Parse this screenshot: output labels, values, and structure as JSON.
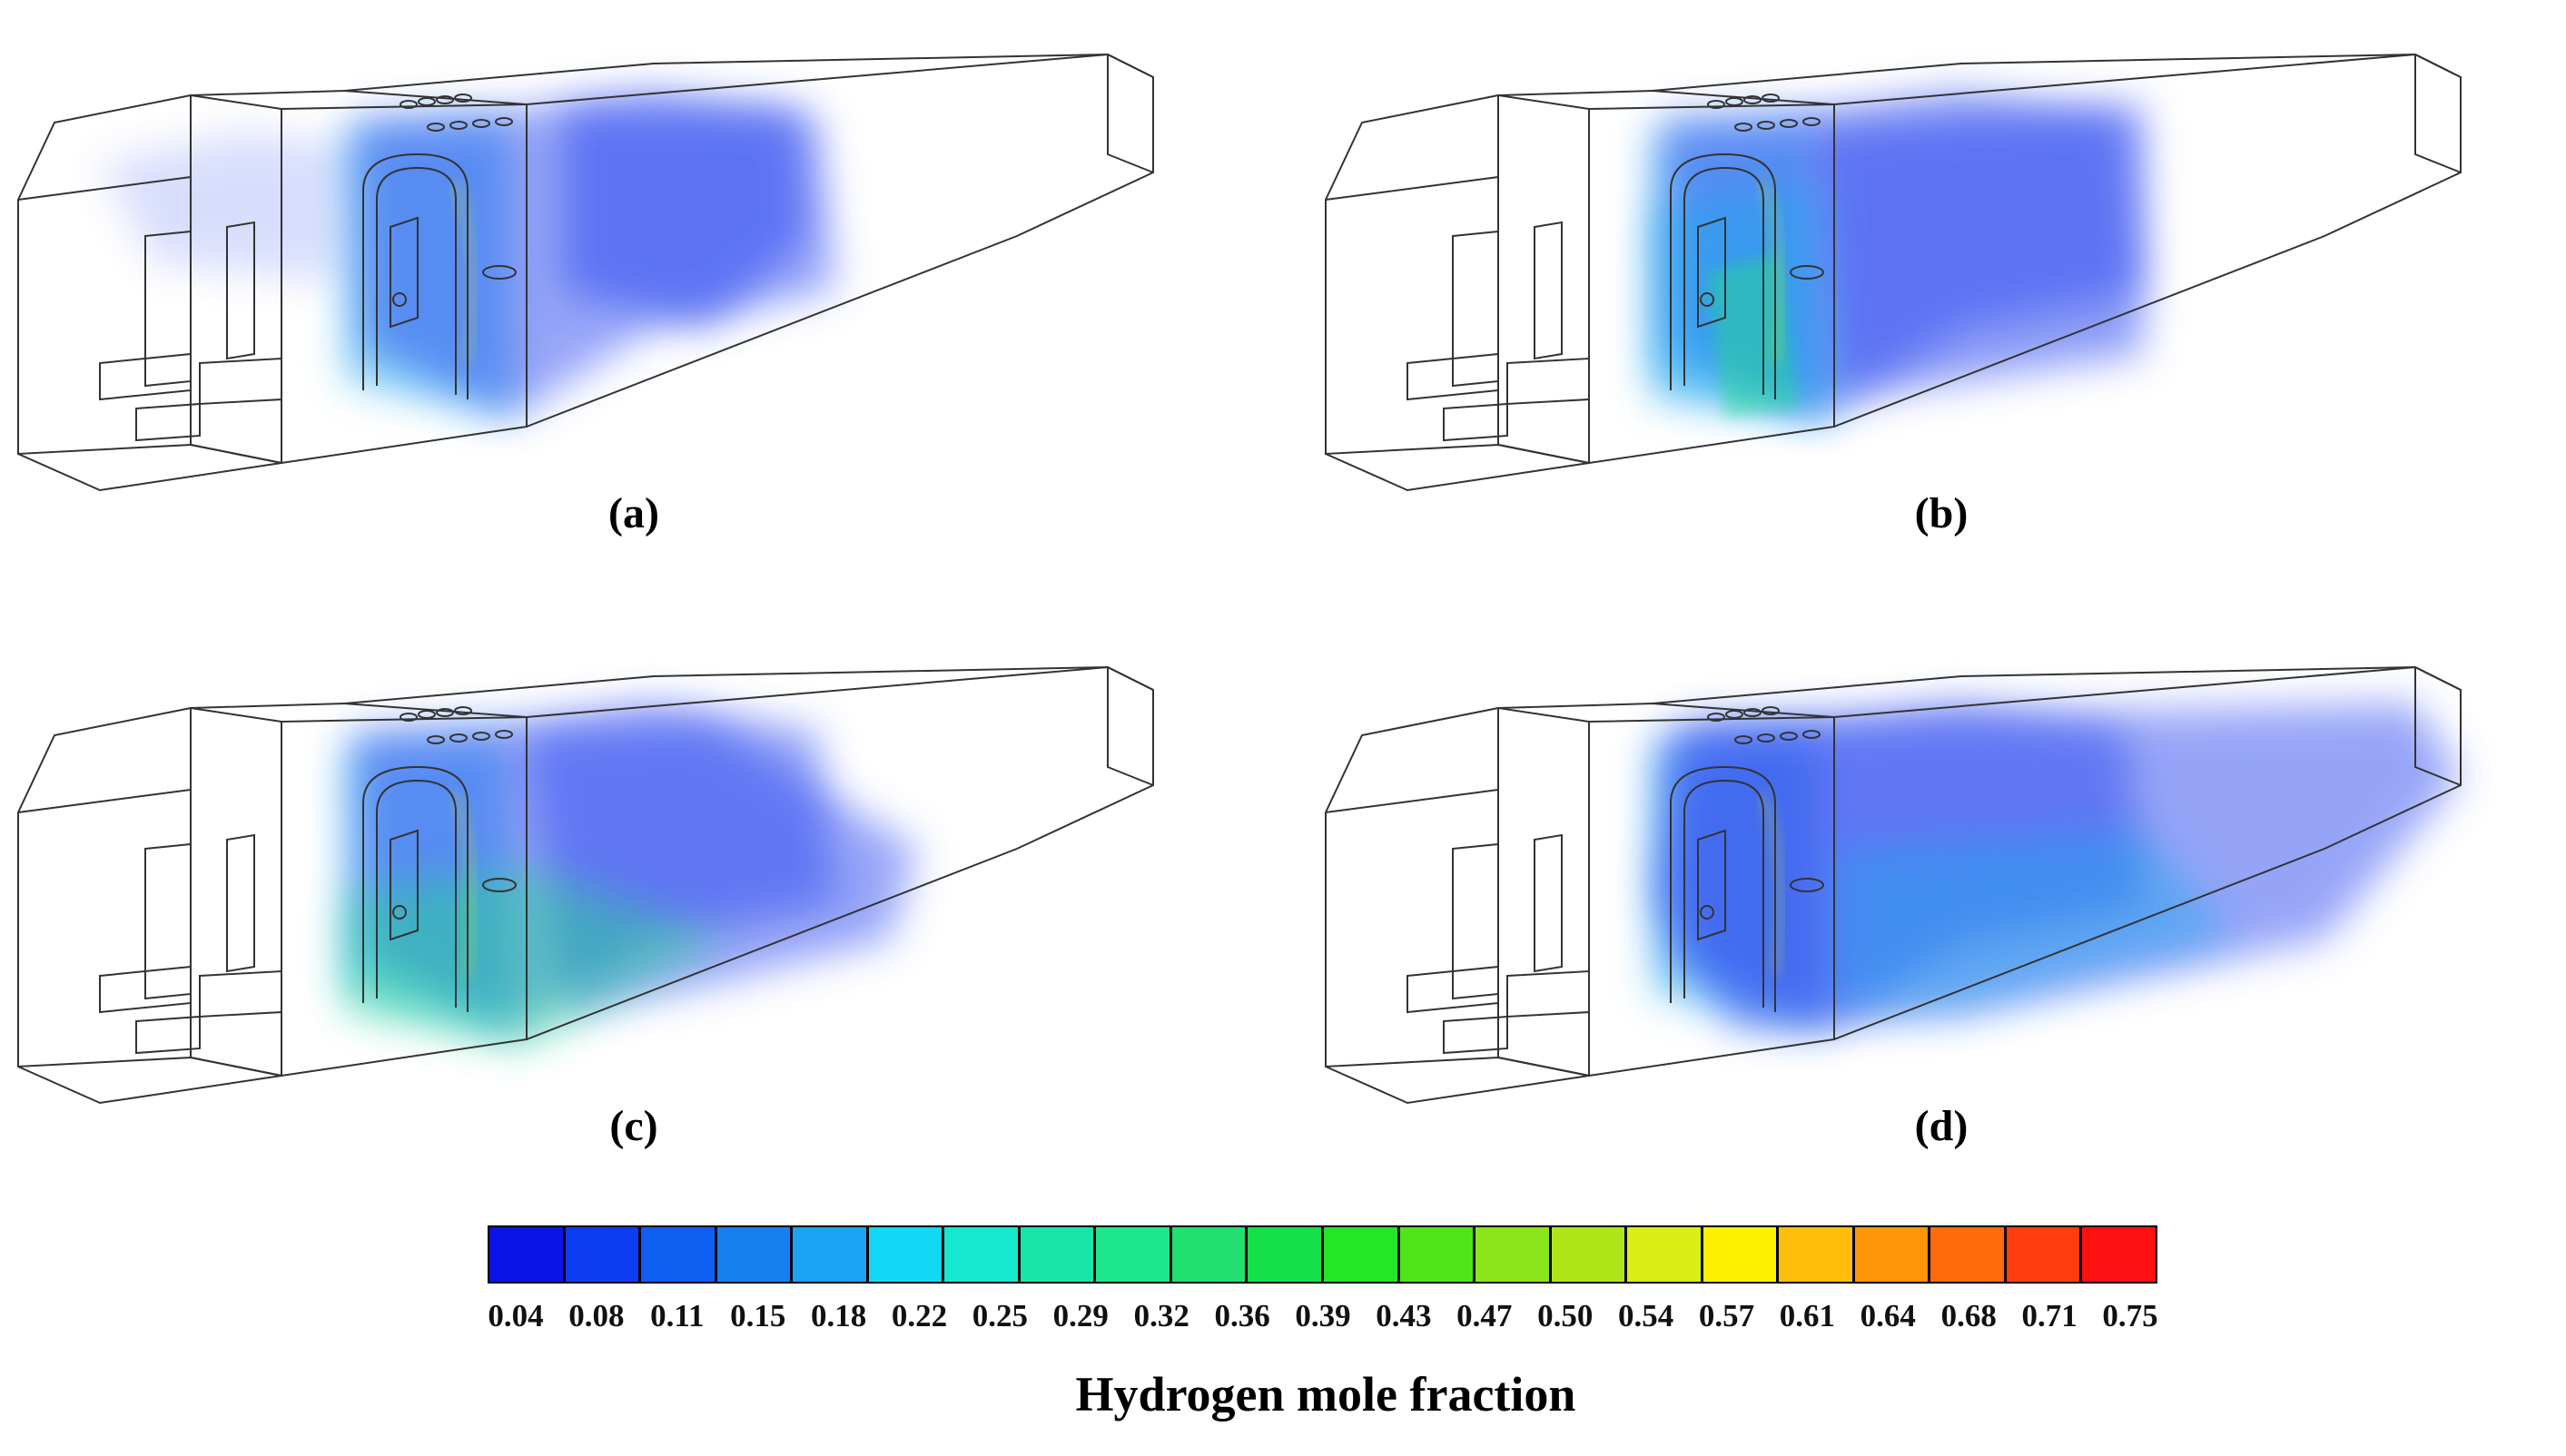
{
  "panels": [
    {
      "caption": "(a)",
      "variant": "a"
    },
    {
      "caption": "(b)",
      "variant": "b"
    },
    {
      "caption": "(c)",
      "variant": "c"
    },
    {
      "caption": "(d)",
      "variant": "d"
    }
  ],
  "colorbar": {
    "title": "Hydrogen mole fraction",
    "tick_labels": [
      "0.04",
      "0.08",
      "0.11",
      "0.15",
      "0.18",
      "0.22",
      "0.25",
      "0.29",
      "0.32",
      "0.36",
      "0.39",
      "0.43",
      "0.47",
      "0.50",
      "0.54",
      "0.57",
      "0.61",
      "0.64",
      "0.68",
      "0.71",
      "0.75"
    ],
    "colors": [
      "#0a14e6",
      "#0b3df0",
      "#0f5ef2",
      "#1680f0",
      "#1aa3f2",
      "#10d8f5",
      "#14e8cf",
      "#18e6a8",
      "#1ee68a",
      "#22e070",
      "#14e04a",
      "#22e626",
      "#4ee619",
      "#8ae61a",
      "#aee61a",
      "#d8ee14",
      "#fff000",
      "#ffbe0a",
      "#ff960a",
      "#ff6a0a",
      "#ff3d0d",
      "#ff1010"
    ]
  },
  "plume_colors": {
    "low": "#2e4cf0",
    "mid": "#1fa8ee",
    "green": "#23dd8a",
    "yellow": "#d9f01a"
  }
}
